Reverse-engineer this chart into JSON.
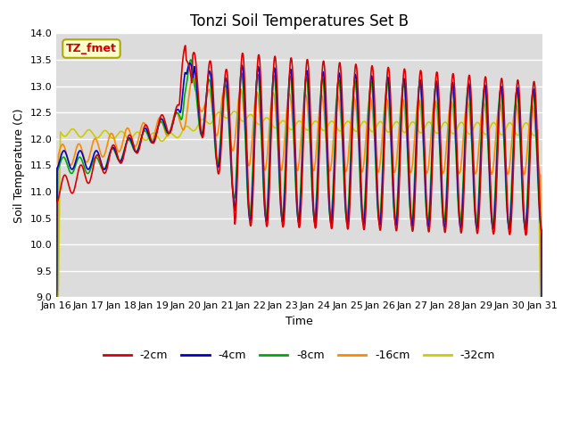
{
  "title": "Tonzi Soil Temperatures Set B",
  "xlabel": "Time",
  "ylabel": "Soil Temperature (C)",
  "ylim": [
    9.0,
    14.0
  ],
  "yticks": [
    9.0,
    9.5,
    10.0,
    10.5,
    11.0,
    11.5,
    12.0,
    12.5,
    13.0,
    13.5,
    14.0
  ],
  "xtick_labels": [
    "Jan 16",
    "Jan 17",
    "Jan 18",
    "Jan 19",
    "Jan 20",
    "Jan 21",
    "Jan 22",
    "Jan 23",
    "Jan 24",
    "Jan 25",
    "Jan 26",
    "Jan 27",
    "Jan 28",
    "Jan 29",
    "Jan 30",
    "Jan 31"
  ],
  "annotation_text": "TZ_fmet",
  "series": {
    "neg2cm": {
      "label": "-2cm",
      "color": "#dd0000",
      "lw": 1.2
    },
    "neg4cm": {
      "label": "-4cm",
      "color": "#0000cc",
      "lw": 1.2
    },
    "neg8cm": {
      "label": "-8cm",
      "color": "#00aa00",
      "lw": 1.2
    },
    "neg16cm": {
      "label": "-16cm",
      "color": "#ff8800",
      "lw": 1.2
    },
    "neg32cm": {
      "label": "-32cm",
      "color": "#cccc00",
      "lw": 1.2
    }
  },
  "bg_color": "#dcdcdc",
  "fig_bg": "#ffffff",
  "title_fontsize": 12,
  "label_fontsize": 9,
  "tick_fontsize": 8,
  "legend_fontsize": 9
}
